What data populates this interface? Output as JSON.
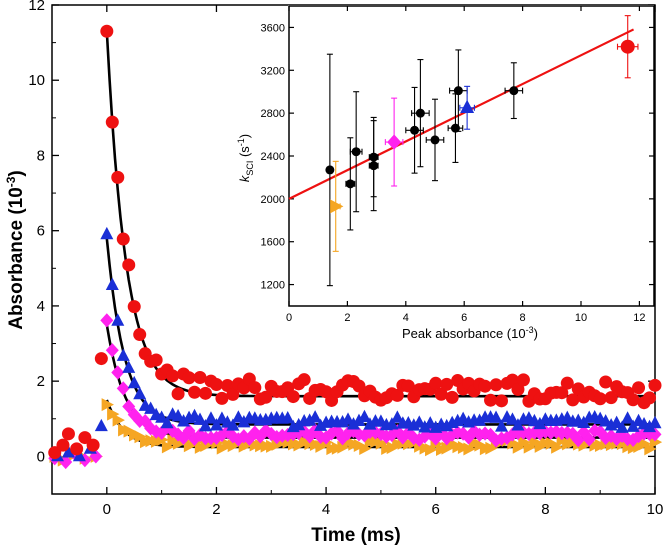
{
  "chart_data": [
    {
      "type": "scatter",
      "role": "main",
      "xlabel": "Time (ms)",
      "ylabel": "Absorbance (10",
      "ylabel_sup": "-3",
      "ylabel_end": ")",
      "xlim": [
        -1,
        10
      ],
      "ylim": [
        -1,
        12
      ],
      "xticks": [
        0,
        2,
        4,
        6,
        8,
        10
      ],
      "yticks": [
        0,
        2,
        4,
        6,
        8,
        10,
        12
      ],
      "series": [
        {
          "name": "red",
          "marker": "circle",
          "color": "#ee1111",
          "peak": 11.3,
          "baseline": 1.75,
          "tau": 0.35,
          "noise": 0.22,
          "pre": [
            [
              -0.95,
              0.1
            ],
            [
              -0.8,
              0.3
            ],
            [
              -0.7,
              0.6
            ],
            [
              -0.55,
              0.2
            ],
            [
              -0.4,
              0.5
            ],
            [
              -0.25,
              0.3
            ],
            [
              -0.1,
              2.6
            ]
          ],
          "fit_end": 1.6
        },
        {
          "name": "blue",
          "marker": "triangle",
          "color": "#1a2fd6",
          "peak": 5.8,
          "baseline": 0.9,
          "tau": 0.32,
          "noise": 0.12,
          "pre": [
            [
              -0.9,
              0.0
            ],
            [
              -0.7,
              0.1
            ],
            [
              -0.5,
              0.0
            ],
            [
              -0.3,
              0.2
            ],
            [
              -0.1,
              0.8
            ]
          ],
          "fit_end": 0.85
        },
        {
          "name": "magenta",
          "marker": "diamond",
          "color": "#ff22ee",
          "peak": 3.5,
          "baseline": 0.55,
          "tau": 0.33,
          "noise": 0.1,
          "pre": [
            [
              -0.95,
              -0.05
            ],
            [
              -0.75,
              -0.15
            ],
            [
              -0.6,
              0.1
            ],
            [
              -0.4,
              -0.1
            ],
            [
              -0.2,
              0.0
            ]
          ],
          "fit_end": 0.5
        },
        {
          "name": "orange",
          "marker": "triangle-right",
          "color": "#f5a623",
          "peak": 1.5,
          "baseline": 0.3,
          "tau": 0.3,
          "noise": 0.08,
          "pre": [
            [
              -0.95,
              0.0
            ],
            [
              -0.8,
              -0.1
            ],
            [
              -0.6,
              0.05
            ],
            [
              -0.4,
              -0.05
            ],
            [
              -0.2,
              0.0
            ]
          ],
          "fit_end": 0.25
        }
      ]
    },
    {
      "type": "scatter",
      "role": "inset",
      "xlabel": "Peak absorbance (10",
      "xlabel_sup": "-3",
      "xlabel_end": ")",
      "ylabel_k": "k",
      "ylabel_sub": "SCI",
      "ylabel_unit": " (s",
      "ylabel_sup": "-1",
      "ylabel_end": ")",
      "xlim": [
        0,
        12.5
      ],
      "ylim": [
        1000,
        3800
      ],
      "xticks": [
        0,
        2,
        4,
        6,
        8,
        10,
        12
      ],
      "yticks": [
        1200,
        1600,
        2000,
        2400,
        2800,
        3200,
        3600
      ],
      "fit_line": {
        "color": "#ee1111",
        "intercept": 2000,
        "slope": 134,
        "x_range": [
          0,
          11.8
        ]
      },
      "points": [
        {
          "x": 1.4,
          "y": 2270,
          "yerr": 1080,
          "xerr": 0,
          "marker": "circle",
          "color": "#000000"
        },
        {
          "x": 2.1,
          "y": 2140,
          "yerr": 430,
          "xerr": 0.15,
          "marker": "circle",
          "color": "#000000"
        },
        {
          "x": 2.3,
          "y": 2440,
          "yerr": 560,
          "xerr": 0.2,
          "marker": "circle",
          "color": "#000000"
        },
        {
          "x": 2.9,
          "y": 2390,
          "yerr": 370,
          "xerr": 0.15,
          "marker": "circle",
          "color": "#000000"
        },
        {
          "x": 2.9,
          "y": 2310,
          "yerr": 420,
          "xerr": 0.15,
          "marker": "circle",
          "color": "#000000"
        },
        {
          "x": 4.3,
          "y": 2640,
          "yerr": 400,
          "xerr": 0.3,
          "marker": "circle",
          "color": "#000000"
        },
        {
          "x": 4.5,
          "y": 2800,
          "yerr": 500,
          "xerr": 0.3,
          "marker": "circle",
          "color": "#000000"
        },
        {
          "x": 5.0,
          "y": 2550,
          "yerr": 380,
          "xerr": 0.3,
          "marker": "circle",
          "color": "#000000"
        },
        {
          "x": 5.7,
          "y": 2660,
          "yerr": 320,
          "xerr": 0.25,
          "marker": "circle",
          "color": "#000000"
        },
        {
          "x": 5.8,
          "y": 3010,
          "yerr": 380,
          "xerr": 0.3,
          "marker": "circle",
          "color": "#000000"
        },
        {
          "x": 7.7,
          "y": 3010,
          "yerr": 260,
          "xerr": 0.3,
          "marker": "circle",
          "color": "#000000"
        },
        {
          "x": 6.1,
          "y": 2850,
          "yerr": 200,
          "xerr": 0.25,
          "marker": "triangle",
          "color": "#1a2fd6"
        },
        {
          "x": 3.6,
          "y": 2530,
          "yerr": 410,
          "xerr": 0.3,
          "marker": "diamond",
          "color": "#ff22ee"
        },
        {
          "x": 1.6,
          "y": 1930,
          "yerr": 420,
          "xerr": 0.15,
          "marker": "triangle-right",
          "color": "#f5a623"
        },
        {
          "x": 11.6,
          "y": 3420,
          "yerr": 290,
          "xerr": 0.35,
          "marker": "circle",
          "color": "#ee1111"
        }
      ]
    }
  ]
}
